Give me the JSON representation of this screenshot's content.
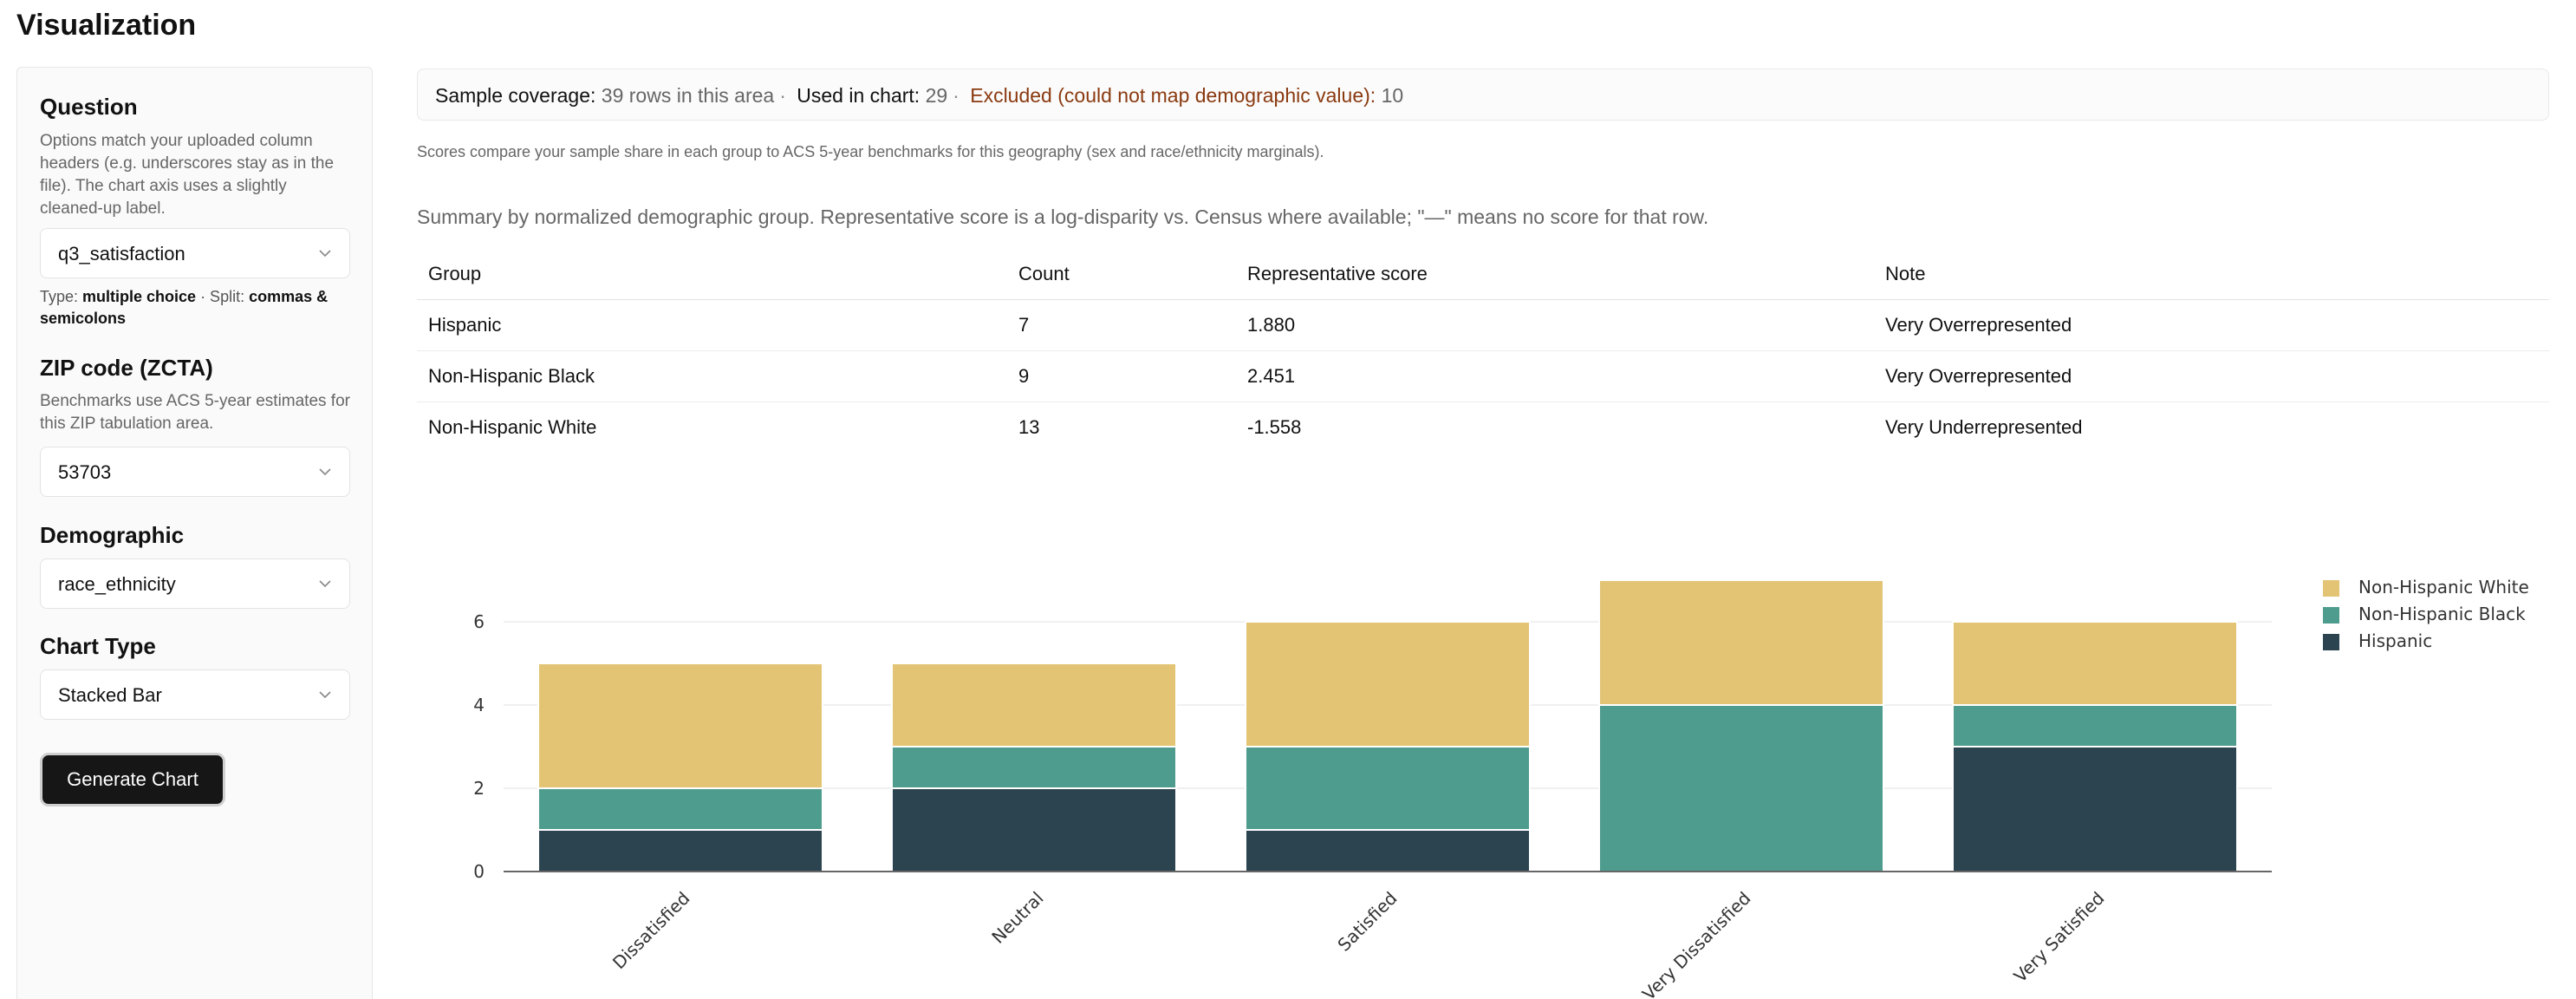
{
  "page": {
    "title": "Visualization"
  },
  "sidebar": {
    "question": {
      "title": "Question",
      "help": "Options match your uploaded column headers (e.g. underscores stay as in the file). The chart axis uses a slightly cleaned-up label.",
      "selected": "q3_satisfaction",
      "type_prefix": "Type: ",
      "type_value": "multiple choice",
      "split_prefix": " · Split: ",
      "split_value": "commas & semicolons"
    },
    "zip": {
      "title": "ZIP code (ZCTA)",
      "help": "Benchmarks use ACS 5-year estimates for this ZIP tabulation area.",
      "selected": "53703"
    },
    "demographic": {
      "title": "Demographic",
      "selected": "race_ethnicity"
    },
    "chart_type": {
      "title": "Chart Type",
      "selected": "Stacked Bar"
    },
    "generate_label": "Generate Chart"
  },
  "coverage": {
    "sample_label": "Sample coverage:",
    "sample_value": "39 rows in this area",
    "used_label": "Used in chart:",
    "used_value": "29",
    "excluded_label": "Excluded (could not map demographic value):",
    "excluded_value": "10"
  },
  "benchmark_note": "Scores compare your sample share in each group to ACS 5-year benchmarks for this geography (sex and race/ethnicity marginals).",
  "summary": {
    "description": "Summary by normalized demographic group. Representative score is a log-disparity vs. Census where available; \"—\" means no score for that row.",
    "headers": [
      "Group",
      "Count",
      "Representative score",
      "Note"
    ],
    "rows": [
      [
        "Hispanic",
        "7",
        "1.880",
        "Very Overrepresented"
      ],
      [
        "Non-Hispanic Black",
        "9",
        "2.451",
        "Very Overrepresented"
      ],
      [
        "Non-Hispanic White",
        "13",
        "-1.558",
        "Very Underrepresented"
      ]
    ]
  },
  "chart_data": {
    "type": "bar",
    "stacked": true,
    "categories": [
      "Dissatisfied",
      "Neutral",
      "Satisfied",
      "Very Dissatisfied",
      "Very Satisfied"
    ],
    "series": [
      {
        "name": "Hispanic",
        "color": "#2c4450",
        "values": [
          1,
          2,
          1,
          0,
          3
        ]
      },
      {
        "name": "Non-Hispanic Black",
        "color": "#4e9c8e",
        "values": [
          1,
          1,
          2,
          4,
          1
        ]
      },
      {
        "name": "Non-Hispanic White",
        "color": "#e2c474",
        "values": [
          3,
          2,
          3,
          3,
          2
        ]
      }
    ],
    "yticks": [
      0,
      2,
      4,
      6
    ],
    "ylim": [
      0,
      7
    ],
    "grid": true,
    "legend": {
      "position": "right",
      "order": [
        "Non-Hispanic White",
        "Non-Hispanic Black",
        "Hispanic"
      ]
    }
  }
}
